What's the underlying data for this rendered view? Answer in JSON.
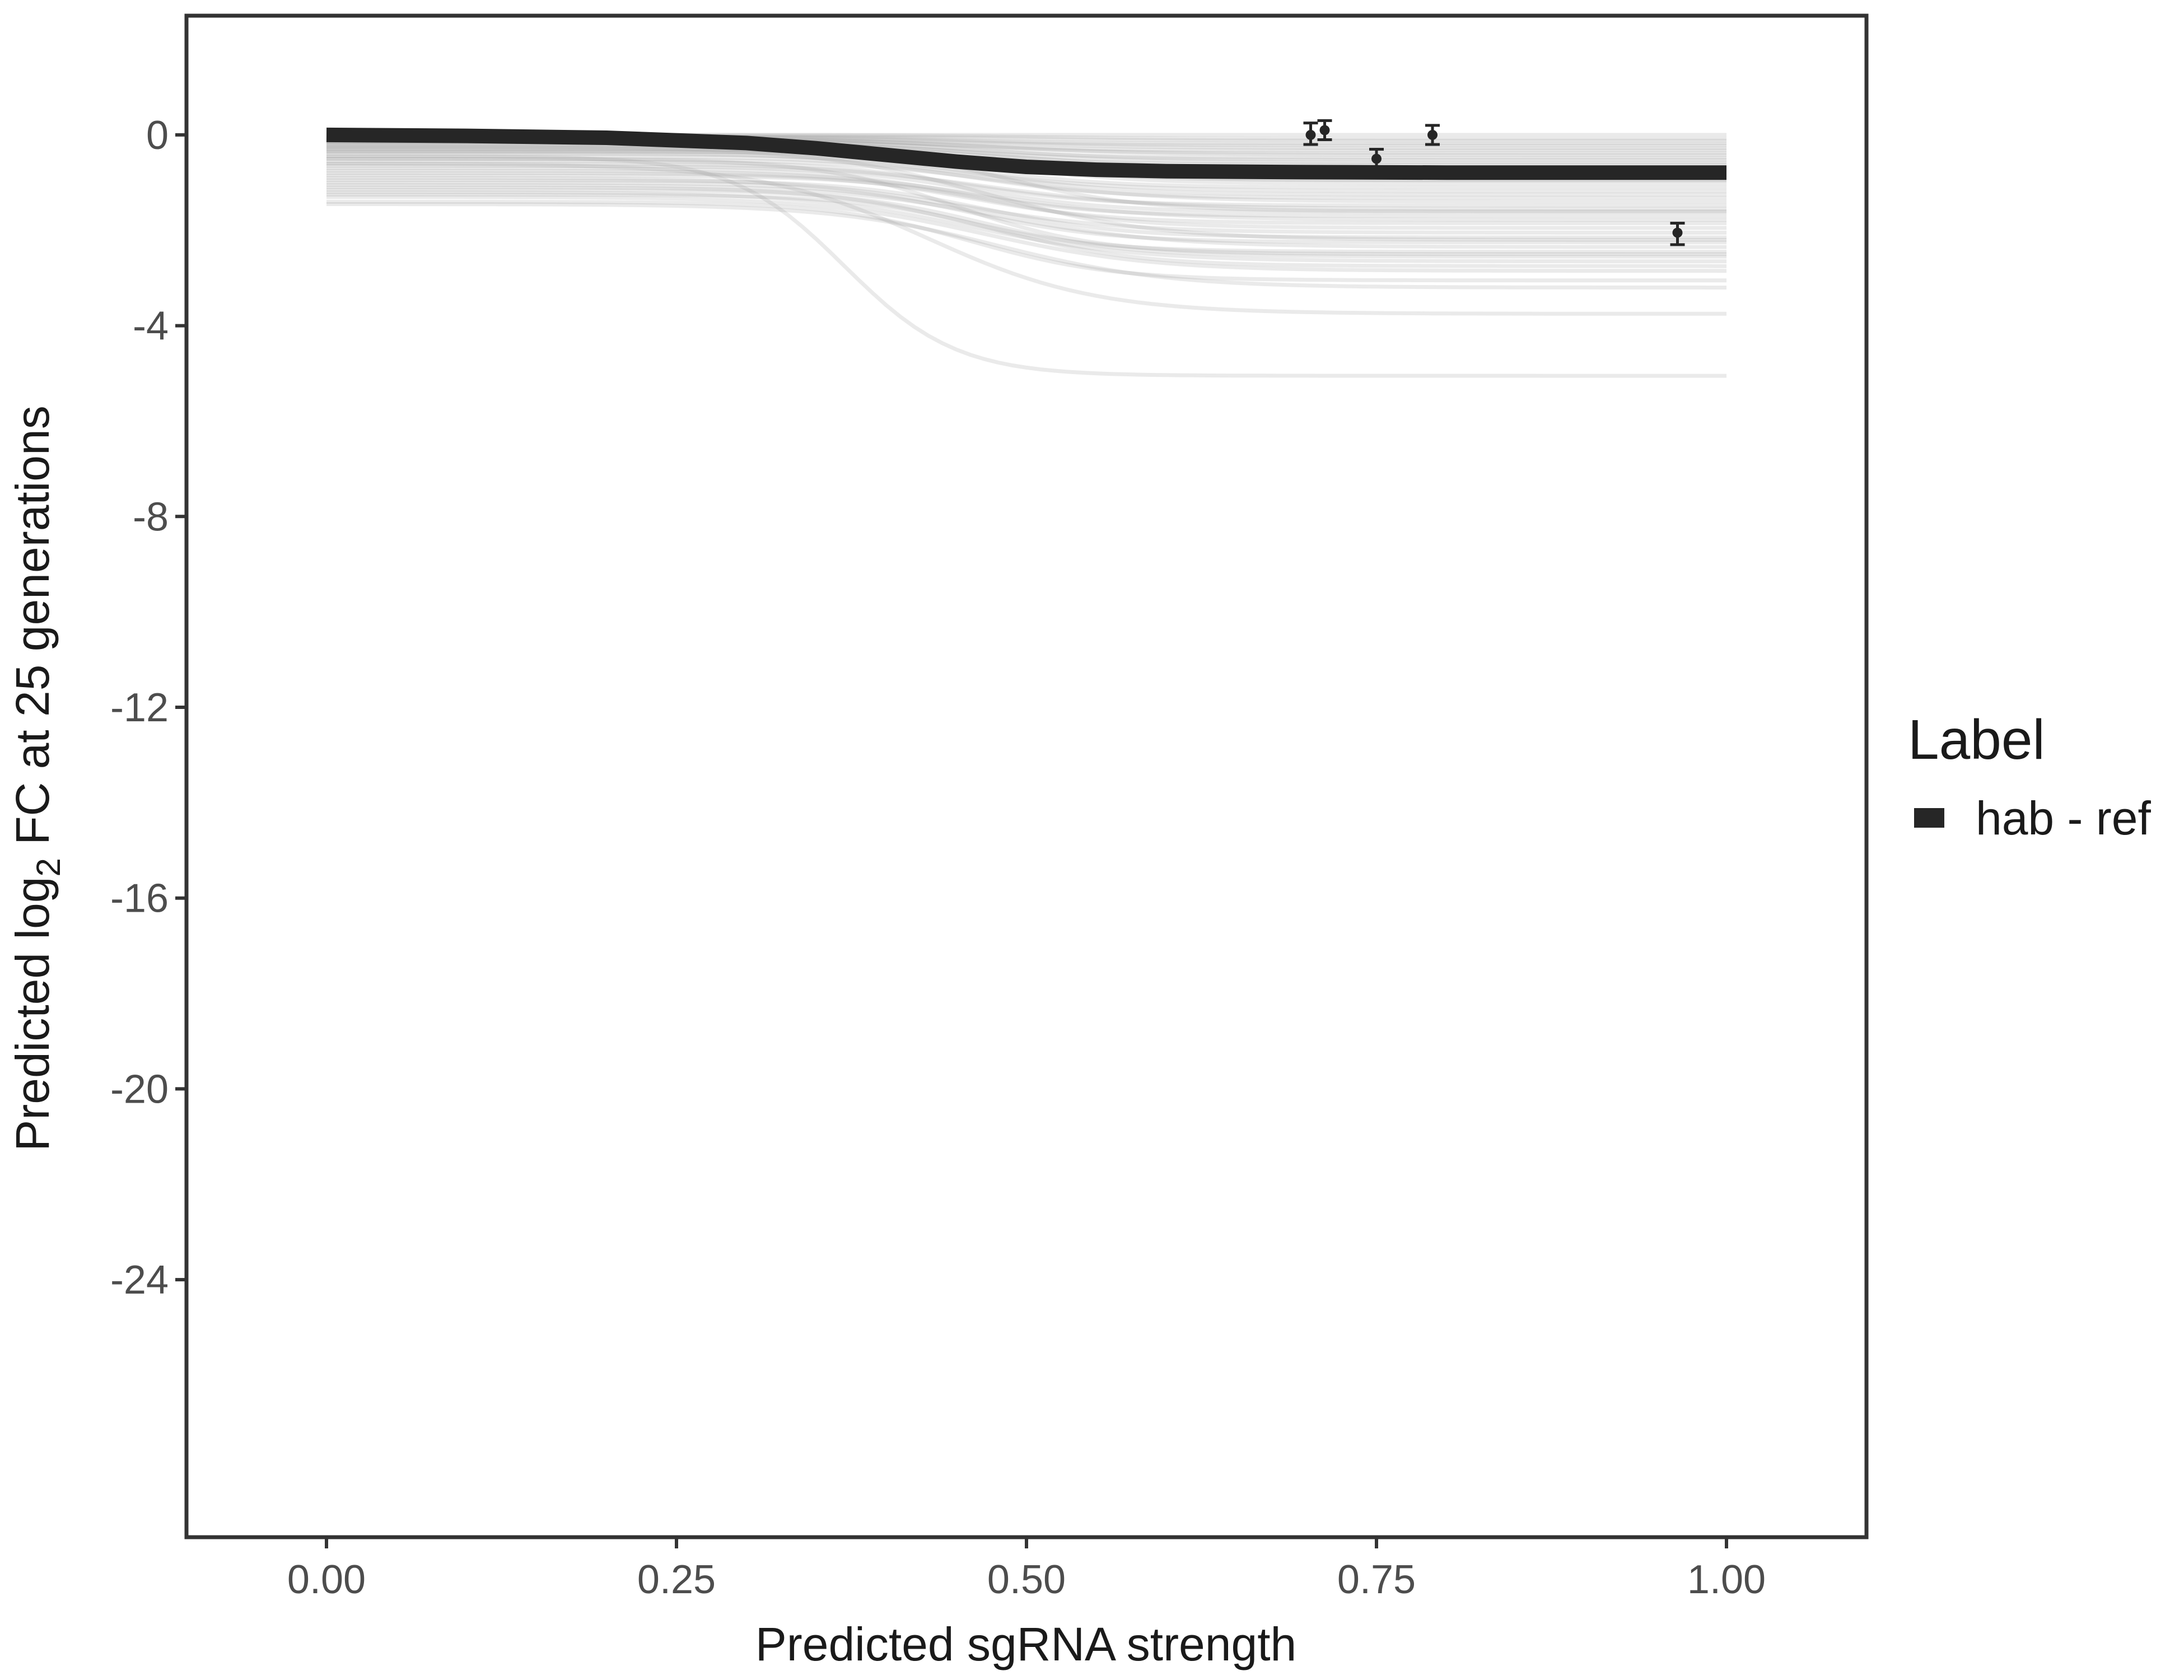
{
  "chart_data": {
    "type": "line",
    "xlabel": "Predicted sgRNA strength",
    "ylabel_prefix": "Predicted  log",
    "ylabel_sub": "2",
    "ylabel_suffix": " FC at 25 generations",
    "xlim": [
      -0.1,
      1.1
    ],
    "ylim": [
      -29.4,
      2.5
    ],
    "x_ticks": [
      0,
      0.25,
      0.5,
      0.75,
      1
    ],
    "x_tick_labels": [
      "0.00",
      "0.25",
      "0.50",
      "0.75",
      "1.00"
    ],
    "y_ticks": [
      0,
      -4,
      -8,
      -12,
      -16,
      -20,
      -24
    ],
    "y_tick_labels": [
      "0",
      "-4",
      "-8",
      "-12",
      "-16",
      "-20",
      "-24"
    ],
    "grid": false,
    "legend_position": "right",
    "legend_title": "Label",
    "main_series": {
      "name": "hab - ref",
      "color": "#262626",
      "x": [
        0,
        0.1,
        0.2,
        0.3,
        0.35,
        0.4,
        0.45,
        0.5,
        0.55,
        0.6,
        0.7,
        0.8,
        0.9,
        1.0
      ],
      "y": [
        0,
        -0.02,
        -0.06,
        -0.17,
        -0.28,
        -0.42,
        -0.56,
        -0.67,
        -0.73,
        -0.76,
        -0.78,
        -0.79,
        -0.79,
        -0.79
      ]
    },
    "sample_curves": {
      "color": "#9e9e9e",
      "params": [
        [
          0.0,
          0.0,
          0.45,
          0.05
        ],
        [
          0.0,
          -0.08,
          0.5,
          0.05
        ],
        [
          -0.02,
          -0.12,
          0.48,
          0.06
        ],
        [
          -0.03,
          -0.18,
          0.45,
          0.05
        ],
        [
          -0.05,
          -0.22,
          0.46,
          0.05
        ],
        [
          -0.05,
          -0.28,
          0.47,
          0.06
        ],
        [
          -0.07,
          -0.32,
          0.44,
          0.05
        ],
        [
          -0.08,
          -0.38,
          0.46,
          0.05
        ],
        [
          -0.1,
          -0.42,
          0.48,
          0.06
        ],
        [
          -0.1,
          -0.48,
          0.45,
          0.05
        ],
        [
          -0.12,
          -0.52,
          0.47,
          0.05
        ],
        [
          -0.14,
          -0.58,
          0.46,
          0.06
        ],
        [
          -0.15,
          -0.62,
          0.45,
          0.05
        ],
        [
          -0.17,
          -0.68,
          0.48,
          0.05
        ],
        [
          -0.2,
          -0.74,
          0.44,
          0.06
        ],
        [
          -0.22,
          -0.82,
          0.47,
          0.05
        ],
        [
          -0.25,
          -0.88,
          0.46,
          0.05
        ],
        [
          -0.28,
          -0.95,
          0.45,
          0.06
        ],
        [
          -0.3,
          -1.02,
          0.48,
          0.05
        ],
        [
          -0.33,
          -1.1,
          0.46,
          0.05
        ],
        [
          -0.36,
          -1.18,
          0.45,
          0.06
        ],
        [
          -0.4,
          -1.25,
          0.47,
          0.05
        ],
        [
          -0.45,
          -1.32,
          0.46,
          0.05
        ],
        [
          -0.5,
          -1.4,
          0.48,
          0.06
        ],
        [
          -0.55,
          -1.48,
          0.45,
          0.05
        ],
        [
          -0.6,
          -1.55,
          0.47,
          0.06
        ],
        [
          -0.65,
          -1.62,
          0.46,
          0.05
        ],
        [
          -0.7,
          -1.7,
          0.45,
          0.05
        ],
        [
          -0.75,
          -1.78,
          0.47,
          0.06
        ],
        [
          -0.8,
          -1.85,
          0.46,
          0.05
        ],
        [
          -0.85,
          -1.95,
          0.48,
          0.05
        ],
        [
          -0.9,
          -2.05,
          0.45,
          0.06
        ],
        [
          -0.95,
          -2.15,
          0.47,
          0.05
        ],
        [
          -1.0,
          -2.25,
          0.46,
          0.05
        ],
        [
          -1.05,
          -2.35,
          0.48,
          0.06
        ],
        [
          -1.1,
          -2.45,
          0.45,
          0.05
        ],
        [
          -1.15,
          -2.55,
          0.47,
          0.05
        ],
        [
          -1.2,
          -2.65,
          0.46,
          0.06
        ],
        [
          -1.25,
          -2.75,
          0.48,
          0.05
        ],
        [
          -1.3,
          -2.85,
          0.47,
          0.06
        ],
        [
          -1.4,
          -3.05,
          0.46,
          0.05
        ],
        [
          -1.45,
          -3.2,
          0.48,
          0.06
        ],
        [
          -0.6,
          -3.75,
          0.43,
          0.06
        ],
        [
          -0.45,
          -5.05,
          0.37,
          0.04
        ],
        [
          -0.35,
          -0.95,
          0.5,
          0.05
        ],
        [
          -0.15,
          -1.6,
          0.48,
          0.05
        ],
        [
          -0.25,
          -2.2,
          0.47,
          0.06
        ],
        [
          -0.5,
          -2.5,
          0.45,
          0.05
        ]
      ]
    },
    "points": [
      {
        "x": 0.703,
        "y": 0.0,
        "ymin": -0.2,
        "ymax": 0.25
      },
      {
        "x": 0.713,
        "y": 0.1,
        "ymin": -0.1,
        "ymax": 0.3
      },
      {
        "x": 0.75,
        "y": -0.5,
        "ymin": -0.7,
        "ymax": -0.3
      },
      {
        "x": 0.79,
        "y": 0.0,
        "ymin": -0.2,
        "ymax": 0.2
      },
      {
        "x": 0.965,
        "y": -2.05,
        "ymin": -2.3,
        "ymax": -1.85
      }
    ]
  }
}
